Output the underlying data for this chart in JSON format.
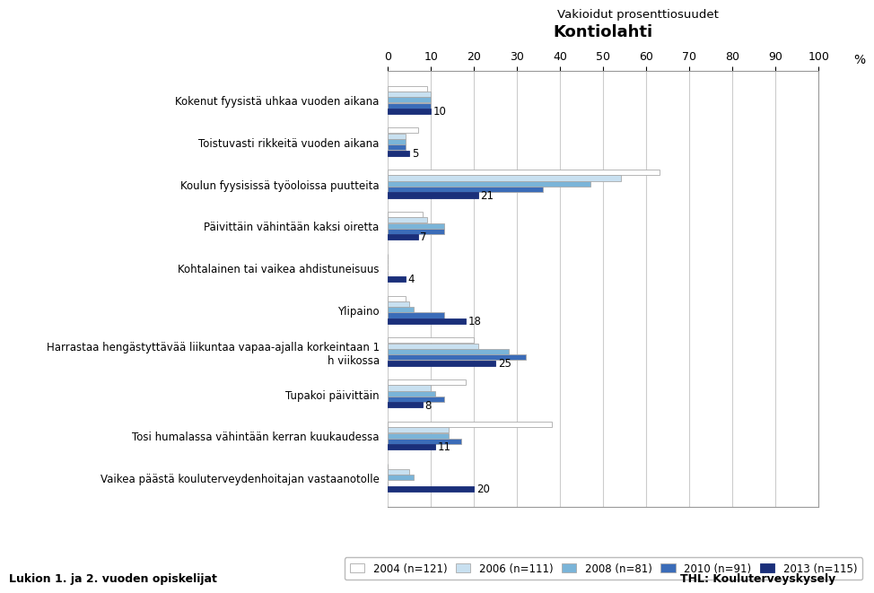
{
  "title": "Kontiolahti",
  "super_title": "Vakioidut prosenttiosuudet",
  "categories": [
    "Kokenut fyysistä uhkaa vuoden aikana",
    "Toistuvasti rikkeitä vuoden aikana",
    "Koulun fyysisissä työoloissa puutteita",
    "Päivittäin vähintään kaksi oiretta",
    "Kohtalainen tai vaikea ahdistuneisuus",
    "Ylipaino",
    "Harrastaa hengästyttävää liikuntaa vapaa-ajalla korkeintaan 1\nh viikossa",
    "Tupakoi päivittäin",
    "Tosi humalassa vähintään kerran kuukaudessa",
    "Vaikea päästä kouluterveydenhoitajan vastaanotolle"
  ],
  "series_names": [
    "2004 (n=121)",
    "2006 (n=111)",
    "2008 (n=81)",
    "2010 (n=91)",
    "2013 (n=115)"
  ],
  "series_values": [
    [
      9,
      7,
      63,
      8,
      0,
      4,
      20,
      18,
      38,
      0
    ],
    [
      10,
      4,
      54,
      9,
      0,
      5,
      21,
      10,
      14,
      5
    ],
    [
      10,
      4,
      47,
      13,
      0,
      6,
      28,
      11,
      14,
      6
    ],
    [
      10,
      4,
      36,
      13,
      0,
      13,
      32,
      13,
      17,
      0
    ],
    [
      10,
      5,
      21,
      7,
      4,
      18,
      25,
      8,
      11,
      20
    ]
  ],
  "colors": [
    "#ffffff",
    "#c8e0f0",
    "#7ab4d8",
    "#3b6cb8",
    "#1a2f7a"
  ],
  "edge_colors": [
    "#aaaaaa",
    "#aaaaaa",
    "#aaaaaa",
    "#aaaaaa",
    "#1a2f7a"
  ],
  "annotations": [
    10,
    5,
    21,
    7,
    4,
    18,
    25,
    8,
    11,
    20
  ],
  "xlim": [
    0,
    100
  ],
  "xticks": [
    0,
    10,
    20,
    30,
    40,
    50,
    60,
    70,
    80,
    90,
    100
  ],
  "xlabel_unit": "%",
  "footer_left": "Lukion 1. ja 2. vuoden opiskelijat",
  "footer_right": "THL: Kouluterveyskysely"
}
